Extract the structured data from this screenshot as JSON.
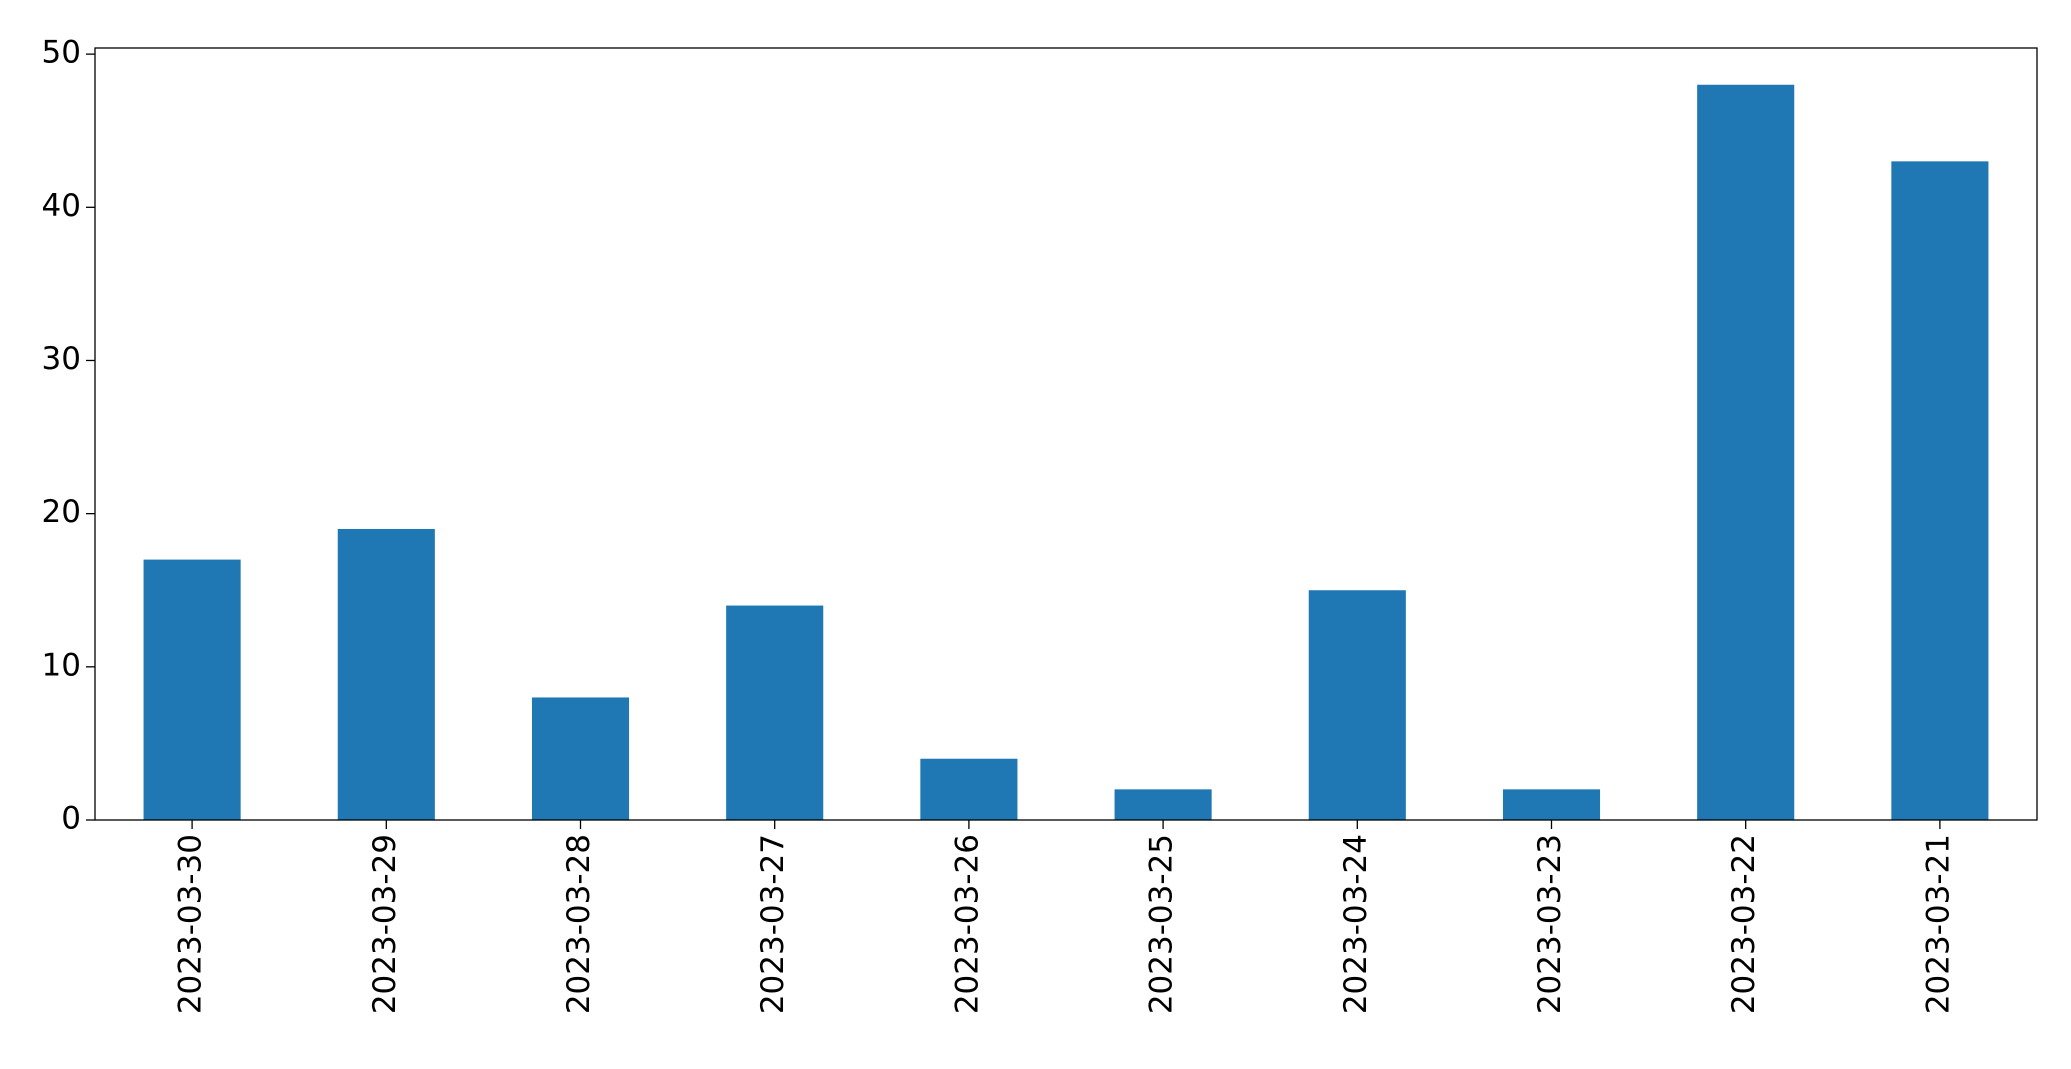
{
  "chart_data": {
    "type": "bar",
    "categories": [
      "2023-03-30",
      "2023-03-29",
      "2023-03-28",
      "2023-03-27",
      "2023-03-26",
      "2023-03-25",
      "2023-03-24",
      "2023-03-23",
      "2023-03-22",
      "2023-03-21"
    ],
    "values": [
      17,
      19,
      8,
      14,
      4,
      2,
      15,
      2,
      48,
      43
    ],
    "color": "#1f77b4",
    "ylim": [
      0,
      50.4
    ],
    "yticks": [
      0,
      10,
      20,
      30,
      40,
      50
    ],
    "grid": false
  }
}
